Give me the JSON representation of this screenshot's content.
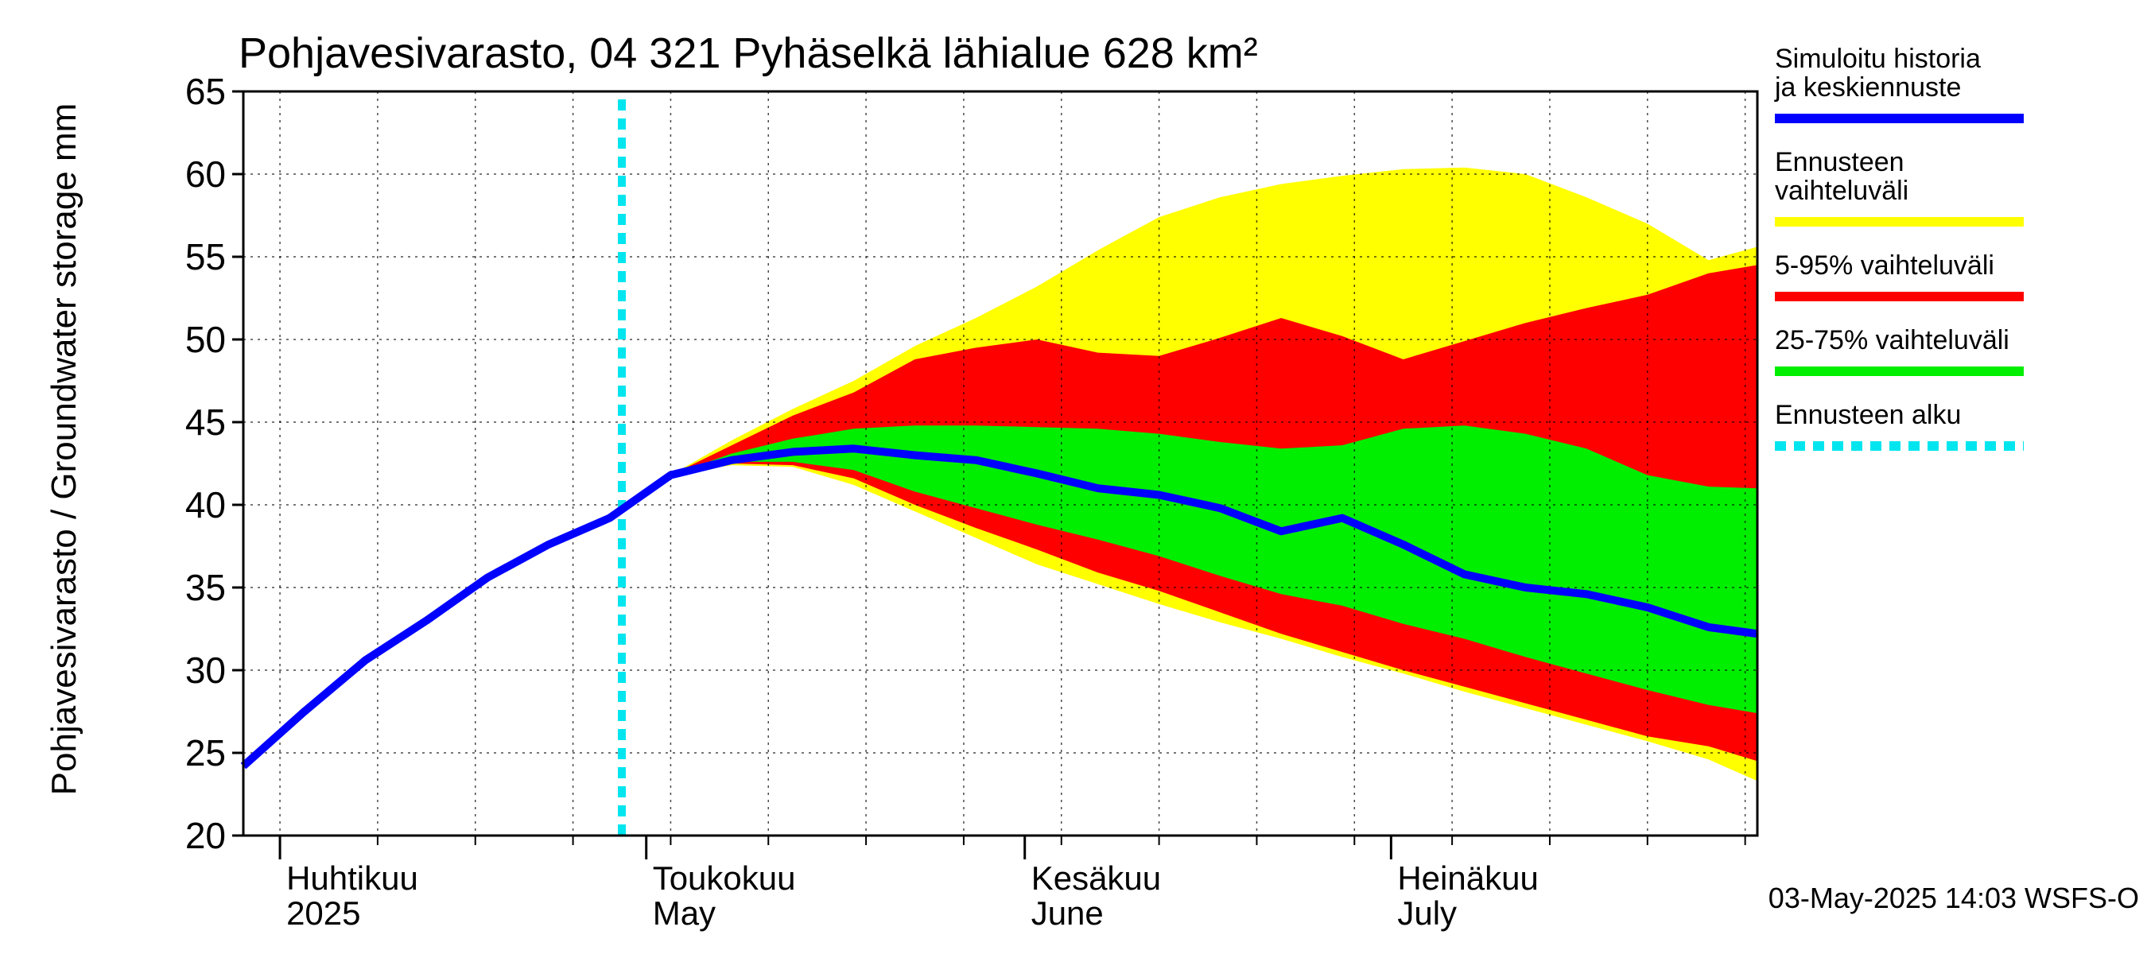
{
  "chart_data": {
    "type": "area",
    "title": "Pohjavesivarasto, 04 321 Pyhäselkä lähialue 628 km²",
    "ylabel": "Pohjavesivarasto / Groundwater storage   mm",
    "ylim": [
      20,
      65
    ],
    "yticks": [
      20,
      25,
      30,
      35,
      40,
      45,
      50,
      55,
      60,
      65
    ],
    "xlim": [
      "2025-03-29",
      "2025-07-31"
    ],
    "grid": true,
    "month_labels": [
      {
        "date": "2025-04-01",
        "fi": "Huhtikuu",
        "en": "2025"
      },
      {
        "date": "2025-05-01",
        "fi": "Toukokuu",
        "en": "May"
      },
      {
        "date": "2025-06-01",
        "fi": "Kesäkuu",
        "en": "June"
      },
      {
        "date": "2025-07-01",
        "fi": "Heinäkuu",
        "en": "July"
      }
    ],
    "forecast_start": "2025-04-29",
    "timestamp": "03-May-2025 14:03 WSFS-O",
    "legend": [
      {
        "label": "Simuloitu historia ja keskiennuste",
        "color": "#0000ff",
        "style": "line"
      },
      {
        "label": "Ennusteen vaihteluväli",
        "color": "#ffff00",
        "style": "band"
      },
      {
        "label": "5-95% vaihteluväli",
        "color": "#ff0000",
        "style": "band"
      },
      {
        "label": "25-75% vaihteluväli",
        "color": "#00ee00",
        "style": "band"
      },
      {
        "label": "Ennusteen alku",
        "color": "#00e5ee",
        "style": "dotted"
      }
    ],
    "x": [
      "2025-03-29",
      "2025-04-03",
      "2025-04-08",
      "2025-04-13",
      "2025-04-18",
      "2025-04-23",
      "2025-04-28",
      "2025-05-03",
      "2025-05-08",
      "2025-05-13",
      "2025-05-18",
      "2025-05-23",
      "2025-05-28",
      "2025-06-02",
      "2025-06-07",
      "2025-06-12",
      "2025-06-17",
      "2025-06-22",
      "2025-06-27",
      "2025-07-02",
      "2025-07-07",
      "2025-07-12",
      "2025-07-17",
      "2025-07-22",
      "2025-07-27",
      "2025-07-31"
    ],
    "series": [
      {
        "name": "Simuloitu historia ja keskiennuste",
        "color": "#0000ff",
        "values": [
          24.2,
          27.5,
          30.6,
          33.0,
          35.6,
          37.6,
          39.2,
          41.8,
          42.7,
          43.2,
          43.4,
          43.0,
          42.7,
          41.9,
          41.0,
          40.6,
          39.8,
          38.4,
          39.2,
          37.6,
          35.8,
          35.0,
          34.6,
          33.8,
          32.6,
          32.2
        ]
      },
      {
        "name": "Ennusteen vaihteluväli",
        "color": "#ffff00",
        "low": [
          null,
          null,
          null,
          null,
          null,
          null,
          null,
          41.8,
          42.4,
          42.3,
          41.2,
          39.6,
          38.0,
          36.4,
          35.2,
          34.0,
          32.9,
          31.9,
          30.8,
          29.8,
          28.7,
          27.7,
          26.7,
          25.7,
          24.6,
          23.3
        ],
        "high": [
          null,
          null,
          null,
          null,
          null,
          null,
          null,
          41.8,
          43.9,
          45.8,
          47.5,
          49.6,
          51.3,
          53.2,
          55.4,
          57.4,
          58.6,
          59.4,
          59.9,
          60.3,
          60.4,
          60.0,
          58.6,
          57.0,
          54.8,
          55.6
        ]
      },
      {
        "name": "5-95% vaihteluväli",
        "color": "#ff0000",
        "low": [
          null,
          null,
          null,
          null,
          null,
          null,
          null,
          41.8,
          42.5,
          42.4,
          41.6,
          40.0,
          38.6,
          37.3,
          35.9,
          34.8,
          33.5,
          32.2,
          31.1,
          30.0,
          29.0,
          28.0,
          27.0,
          26.0,
          25.4,
          24.5
        ],
        "high": [
          null,
          null,
          null,
          null,
          null,
          null,
          null,
          41.8,
          43.6,
          45.4,
          46.8,
          48.8,
          49.5,
          50.0,
          49.2,
          49.0,
          50.1,
          51.3,
          50.2,
          48.8,
          49.9,
          51.0,
          51.9,
          52.7,
          54.0,
          54.5
        ]
      },
      {
        "name": "25-75% vaihteluväli",
        "color": "#00ee00",
        "low": [
          null,
          null,
          null,
          null,
          null,
          null,
          null,
          41.8,
          42.6,
          42.6,
          42.1,
          40.8,
          39.8,
          38.8,
          37.9,
          36.9,
          35.7,
          34.6,
          33.9,
          32.8,
          31.9,
          30.8,
          29.8,
          28.8,
          27.9,
          27.4
        ],
        "high": [
          null,
          null,
          null,
          null,
          null,
          null,
          null,
          41.8,
          43.1,
          44.0,
          44.6,
          44.8,
          44.8,
          44.7,
          44.6,
          44.3,
          43.8,
          43.4,
          43.6,
          44.6,
          44.8,
          44.3,
          43.4,
          41.8,
          41.1,
          41.0
        ]
      }
    ]
  }
}
